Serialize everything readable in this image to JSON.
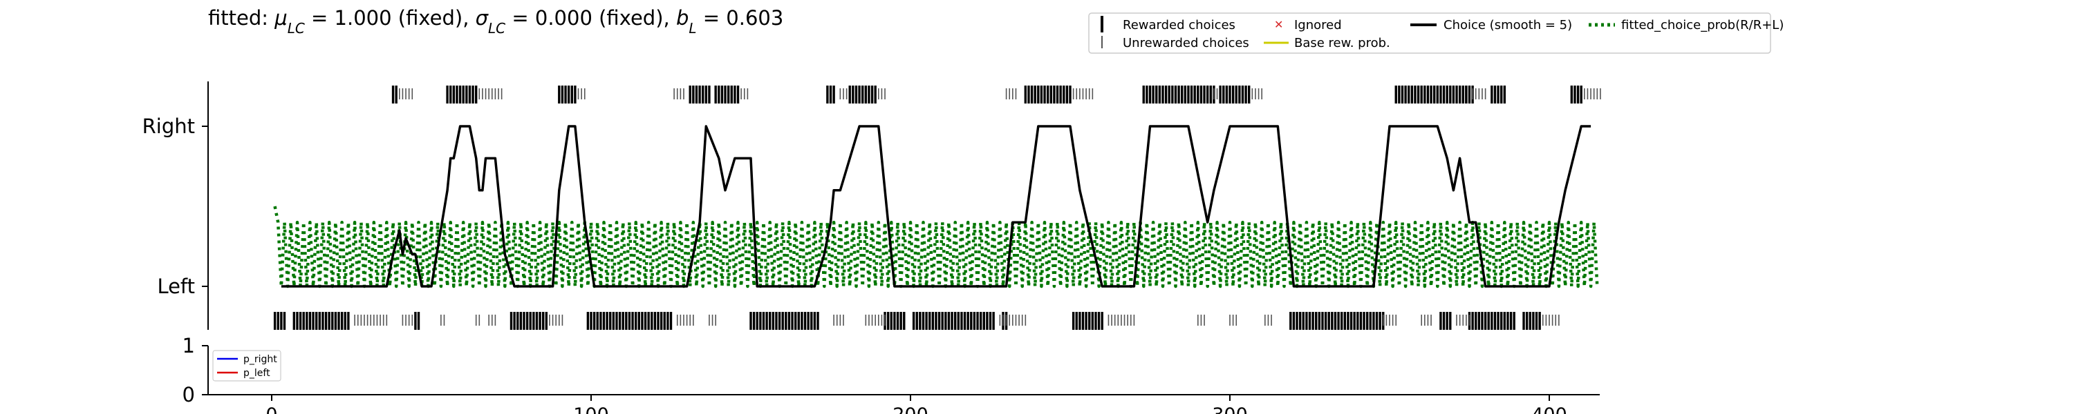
{
  "chart_data": [
    {
      "type": "line",
      "title_parts": [
        {
          "t": "fitted: "
        },
        {
          "t": "μ",
          "it": true
        },
        {
          "t": "LC",
          "sub": true,
          "it": true
        },
        {
          "t": " = 1.000 (fixed), "
        },
        {
          "t": "σ",
          "it": true
        },
        {
          "t": "LC",
          "sub": true,
          "it": true
        },
        {
          "t": " = 0.000 (fixed), "
        },
        {
          "t": "b",
          "it": true
        },
        {
          "t": "L",
          "sub": true,
          "it": true
        },
        {
          "t": " = 0.603"
        }
      ],
      "xlim": [
        -20,
        416
      ],
      "y_ticks": [
        "Right",
        "Left"
      ],
      "legend_position": "top-right",
      "legend": [
        {
          "label": "Rewarded choices",
          "marker": "thick-bar",
          "color": "#000000"
        },
        {
          "label": "Unrewarded choices",
          "marker": "thin-bar",
          "color": "#555555"
        },
        {
          "label": "Ignored",
          "marker": "x",
          "color": "#d62728"
        },
        {
          "label": "Base rew. prob.",
          "marker": "line",
          "color": "#cccc00"
        },
        {
          "label": "Choice (smooth = 5)",
          "marker": "line",
          "color": "#000000"
        },
        {
          "label": "fitted_choice_prob(R/R+L)",
          "marker": "dotted",
          "color": "#007700"
        }
      ],
      "series": [
        {
          "name": "Choice (smooth = 5)",
          "color": "#000000",
          "x": [
            3,
            36,
            38,
            40,
            41,
            42,
            44,
            45,
            47,
            50,
            55,
            56,
            57,
            59,
            62,
            64,
            65,
            66,
            67,
            68,
            70,
            73,
            76,
            85,
            88,
            90,
            93,
            95,
            98,
            101,
            130,
            134,
            136,
            140,
            142,
            145,
            150,
            152,
            170,
            173,
            175,
            176,
            178,
            184,
            186,
            190,
            195,
            225,
            230,
            232,
            234,
            236,
            240,
            248,
            250,
            253,
            260,
            270,
            275,
            280,
            285,
            287,
            289,
            291,
            293,
            295,
            300,
            310,
            315,
            320,
            335,
            345,
            350,
            355,
            365,
            368,
            370,
            372,
            375,
            377,
            380,
            385,
            400,
            403,
            405,
            410,
            413
          ],
          "y": [
            0,
            0,
            0.2,
            0.35,
            0.2,
            0.3,
            0.2,
            0.2,
            0,
            0,
            0.6,
            0.8,
            0.8,
            1,
            1,
            0.8,
            0.6,
            0.6,
            0.8,
            0.8,
            0.8,
            0.2,
            0,
            0,
            0,
            0.6,
            1,
            1,
            0.4,
            0,
            0,
            0.4,
            1,
            0.8,
            0.6,
            0.8,
            0.8,
            0,
            0,
            0.2,
            0.4,
            0.6,
            0.6,
            1,
            1,
            1,
            0,
            0,
            0,
            0.4,
            0.4,
            0.4,
            1,
            1,
            1,
            0.6,
            0,
            0,
            1,
            1,
            1,
            1,
            0.8,
            0.6,
            0.4,
            0.6,
            1,
            1,
            1,
            0,
            0,
            0,
            1,
            1,
            1,
            0.8,
            0.6,
            0.8,
            0.4,
            0.4,
            0,
            0,
            0,
            0.4,
            0.6,
            1,
            1
          ]
        },
        {
          "name": "fitted_choice_prob(R/R+L)",
          "color": "#007700",
          "y_low": 0,
          "y_high": 0.4,
          "x_start": 1,
          "n": 415
        }
      ],
      "rewarded_right": [
        [
          38,
          39
        ],
        [
          55,
          64
        ],
        [
          90,
          95
        ],
        [
          131,
          137
        ],
        [
          139,
          146
        ],
        [
          174,
          176
        ],
        [
          181,
          189
        ],
        [
          236,
          250
        ],
        [
          273,
          289
        ],
        [
          290,
          295
        ],
        [
          297,
          306
        ],
        [
          352,
          374
        ],
        [
          374,
          376
        ],
        [
          382,
          386
        ],
        [
          407,
          410
        ]
      ],
      "unrewarded_right": [
        [
          40,
          44
        ],
        [
          65,
          72
        ],
        [
          96,
          98
        ],
        [
          126,
          129
        ],
        [
          147,
          149
        ],
        [
          178,
          180
        ],
        [
          190,
          192
        ],
        [
          230,
          233
        ],
        [
          251,
          257
        ],
        [
          295,
          296
        ],
        [
          307,
          310
        ],
        [
          376,
          380
        ],
        [
          411,
          416
        ]
      ],
      "rewarded_left": [
        [
          1,
          4
        ],
        [
          7,
          17
        ],
        [
          18,
          24
        ],
        [
          45,
          46
        ],
        [
          75,
          86
        ],
        [
          99,
          118
        ],
        [
          119,
          125
        ],
        [
          150,
          171
        ],
        [
          192,
          198
        ],
        [
          201,
          226
        ],
        [
          229,
          230
        ],
        [
          251,
          260
        ],
        [
          319,
          348
        ],
        [
          366,
          369
        ],
        [
          375,
          382
        ],
        [
          383,
          389
        ],
        [
          392,
          397
        ]
      ],
      "unrewarded_left": [
        [
          26,
          36
        ],
        [
          41,
          44
        ],
        [
          53,
          54
        ],
        [
          64,
          65
        ],
        [
          68,
          70
        ],
        [
          87,
          91
        ],
        [
          127,
          132
        ],
        [
          137,
          139
        ],
        [
          176,
          179
        ],
        [
          186,
          192
        ],
        [
          228,
          230
        ],
        [
          231,
          236
        ],
        [
          262,
          270
        ],
        [
          290,
          292
        ],
        [
          300,
          302
        ],
        [
          311,
          313
        ],
        [
          348,
          352
        ],
        [
          360,
          363
        ],
        [
          371,
          375
        ],
        [
          398,
          403
        ]
      ]
    },
    {
      "type": "line",
      "xlim": [
        -20,
        416
      ],
      "ylim": [
        0,
        1
      ],
      "y_ticks": [
        0,
        1
      ],
      "x_ticks": [
        0,
        100,
        200,
        300,
        400
      ],
      "legend_position": "top-left",
      "series": [
        {
          "name": "p_right",
          "color": "#0000ee",
          "x": [],
          "y": []
        },
        {
          "name": "p_left",
          "color": "#dd0000",
          "x": [],
          "y": []
        }
      ]
    }
  ]
}
